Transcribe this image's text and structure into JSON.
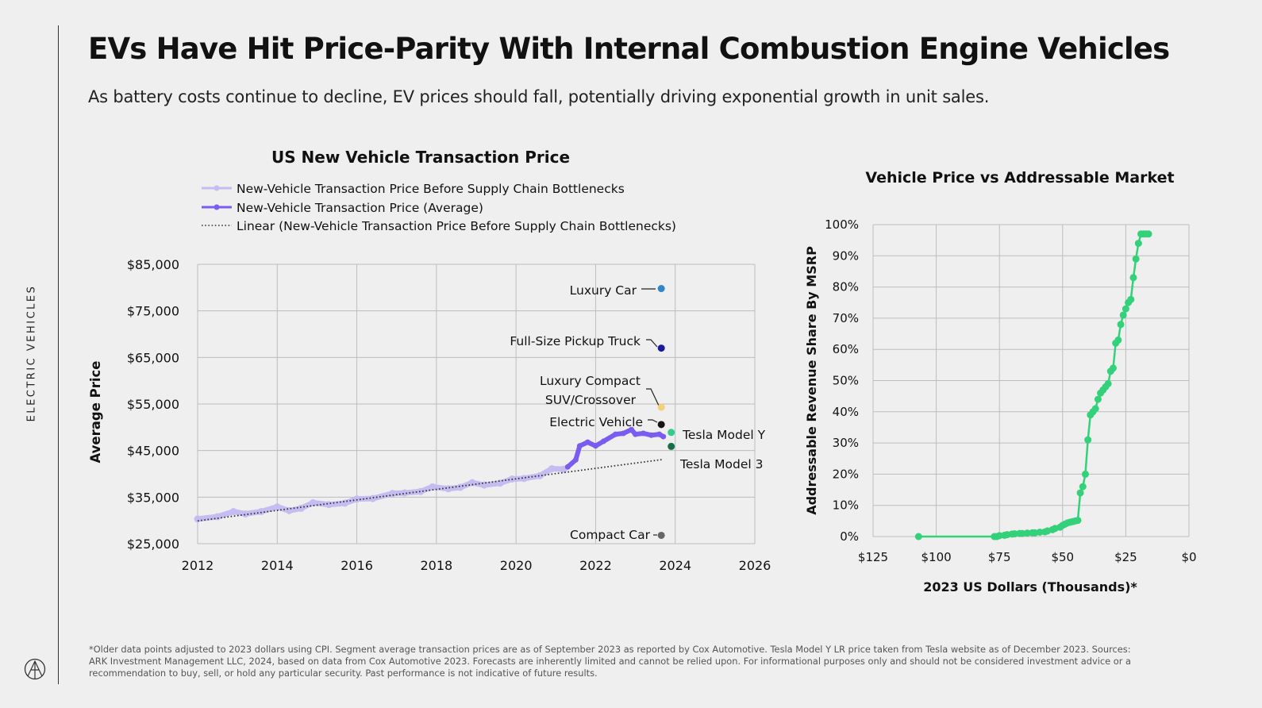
{
  "side_label": "ELECTRIC VEHICLES",
  "logo": "ark-logo-icon",
  "header": {
    "title": "EVs Have Hit Price-Parity With Internal Combustion Engine Vehicles",
    "subtitle": "As battery costs continue to decline, EV prices should fall, potentially driving exponential growth in unit sales."
  },
  "footnote": "*Older data points adjusted to 2023 dollars using CPI. Segment average transaction prices are as of September 2023 as reported by Cox Automotive. Tesla Model Y LR price taken from Tesla website as of December 2023. Sources: ARK Investment Management LLC, 2024, based on data from Cox Automotive 2023. Forecasts are inherently limited and cannot be relied upon. For informational purposes only and should not be considered investment advice or a recommendation to buy, sell, or hold any particular security. Past performance is not indicative of future results.",
  "chart_data": [
    {
      "type": "line",
      "title": "US New Vehicle Transaction Price",
      "xlabel": "",
      "ylabel": "Average Price",
      "xlim": [
        2012,
        2026
      ],
      "ylim": [
        25000,
        85000
      ],
      "x_ticks": [
        2012,
        2014,
        2016,
        2018,
        2020,
        2022,
        2024,
        2026
      ],
      "x_tick_labels": [
        "2012",
        "2014",
        "2016",
        "2018",
        "2020",
        "2022",
        "2024",
        "2026"
      ],
      "y_ticks": [
        25000,
        35000,
        45000,
        55000,
        65000,
        75000,
        85000
      ],
      "y_tick_labels": [
        "$25,000",
        "$35,000",
        "$45,000",
        "$55,000",
        "$65,000",
        "$75,000",
        "$85,000"
      ],
      "grid": true,
      "legend_position": "top-left",
      "series": [
        {
          "name": "New-Vehicle Transaction Price Before Supply Chain Bottlenecks",
          "color": "#c6bcf2",
          "x": [
            2012.0,
            2012.5,
            2012.9,
            2013.2,
            2013.6,
            2014.0,
            2014.3,
            2014.6,
            2014.9,
            2015.3,
            2015.7,
            2016.0,
            2016.4,
            2016.9,
            2017.2,
            2017.6,
            2017.9,
            2018.3,
            2018.6,
            2018.9,
            2019.2,
            2019.6,
            2019.9,
            2020.2,
            2020.6,
            2020.9,
            2021.2
          ],
          "values": [
            30300,
            30800,
            31900,
            31400,
            31900,
            32900,
            32100,
            32600,
            33800,
            33400,
            33700,
            34600,
            34700,
            35800,
            35900,
            36200,
            37200,
            36800,
            37100,
            38100,
            37600,
            38000,
            38900,
            39000,
            39600,
            41100,
            41000
          ]
        },
        {
          "name": "New-Vehicle Transaction Price (Average)",
          "color": "#7b5cf0",
          "x": [
            2021.3,
            2021.5,
            2021.6,
            2021.8,
            2022.0,
            2022.2,
            2022.5,
            2022.7,
            2022.9,
            2023.0,
            2023.2,
            2023.4,
            2023.6,
            2023.7
          ],
          "values": [
            41500,
            43000,
            46000,
            46800,
            46000,
            47000,
            48500,
            48700,
            49500,
            48500,
            48700,
            48300,
            48500,
            48000
          ]
        },
        {
          "name": "Linear (New-Vehicle Transaction Price Before Supply Chain Bottlenecks)",
          "color": "#333333",
          "style": "dotted",
          "x": [
            2012.0,
            2023.7
          ],
          "values": [
            29900,
            43100
          ]
        }
      ],
      "points": [
        {
          "label": "Luxury Car",
          "x": 2023.65,
          "y": 79800,
          "color": "#2f86c8"
        },
        {
          "label": "Full-Size Pickup Truck",
          "x": 2023.65,
          "y": 67000,
          "color": "#1a1a9c"
        },
        {
          "label": "Luxury Compact SUV/Crossover",
          "x": 2023.65,
          "y": 54300,
          "color": "#f0d27a"
        },
        {
          "label": "Electric Vehicle",
          "x": 2023.65,
          "y": 50600,
          "color": "#151515"
        },
        {
          "label": "Tesla Model Y",
          "x": 2023.9,
          "y": 48900,
          "color": "#33cc88"
        },
        {
          "label": "Tesla Model 3",
          "x": 2023.9,
          "y": 45900,
          "color": "#1a6e47"
        },
        {
          "label": "Compact Car",
          "x": 2023.65,
          "y": 26800,
          "color": "#666666"
        }
      ]
    },
    {
      "type": "line",
      "title": "Vehicle Price vs Addressable Market",
      "xlabel": "2023 US Dollars (Thousands)*",
      "ylabel": "Addressable Revenue Share By MSRP",
      "xlim": [
        125,
        0
      ],
      "ylim": [
        0,
        100
      ],
      "x_ticks": [
        125,
        100,
        75,
        50,
        25,
        0
      ],
      "x_tick_labels": [
        "$125",
        "$100",
        "$75",
        "$50",
        "$25",
        "$0"
      ],
      "y_ticks": [
        0,
        10,
        20,
        30,
        40,
        50,
        60,
        70,
        80,
        90,
        100
      ],
      "y_tick_labels": [
        "0%",
        "10%",
        "20%",
        "30%",
        "40%",
        "50%",
        "60%",
        "70%",
        "80%",
        "90%",
        "100%"
      ],
      "grid": true,
      "series": [
        {
          "name": "Addressable Revenue Share",
          "color": "#33d17a",
          "x": [
            107,
            77,
            76,
            75,
            73,
            72,
            70,
            69,
            67,
            66,
            64,
            62,
            61,
            59,
            57,
            56,
            54,
            53,
            51,
            50,
            49,
            48,
            47,
            46,
            45,
            44,
            43,
            42,
            41,
            40,
            39,
            38,
            37,
            36,
            35,
            34,
            33,
            32,
            31,
            30,
            29,
            28,
            27,
            26,
            25,
            24,
            23,
            22,
            21,
            20,
            19,
            18,
            17,
            16
          ],
          "values": [
            0,
            0,
            0,
            0.3,
            0.4,
            0.6,
            0.8,
            0.9,
            1,
            1,
            1.1,
            1.2,
            1.2,
            1.4,
            1.5,
            1.8,
            2.2,
            2.6,
            3,
            3.6,
            4,
            4.4,
            4.6,
            4.8,
            5,
            5.2,
            14,
            16,
            20,
            31,
            39,
            40,
            41,
            44,
            46,
            47,
            48,
            49,
            53,
            54,
            62,
            63,
            68,
            71,
            73,
            75,
            76,
            83,
            89,
            94,
            97,
            97,
            97,
            97
          ]
        }
      ]
    }
  ]
}
